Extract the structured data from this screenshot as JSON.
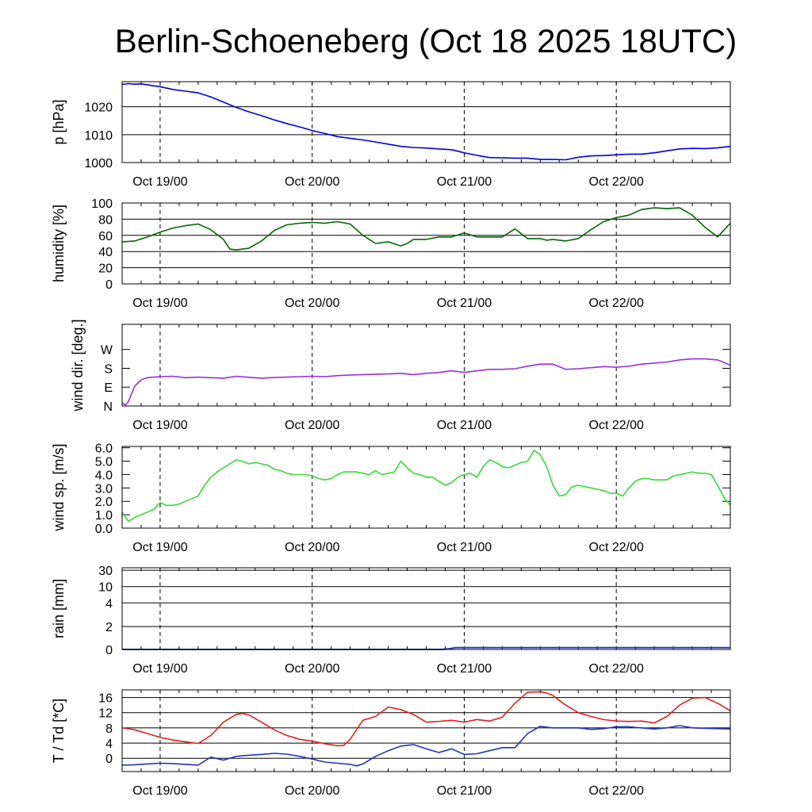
{
  "title": "Berlin-Schoeneberg (Oct 18 2025 18UTC)",
  "colors": {
    "pressure": "#0000e0",
    "humidity": "#006400",
    "wind_dir": "#9a30d8",
    "wind_speed": "#33dd33",
    "rain": "#1f3fbf",
    "temperature": "#e0201c",
    "dewpoint": "#2233bb"
  },
  "chart_data": [
    {
      "type": "line",
      "id": "pressure",
      "ylabel": "p [hPa]",
      "ylim": [
        1000,
        1029
      ],
      "yticks": [
        {
          "v": 1000,
          "label": "1000"
        },
        {
          "v": 1010,
          "label": "1010"
        },
        {
          "v": 1020,
          "label": "1020"
        }
      ],
      "xlim": [
        0,
        96
      ],
      "xticks": [
        {
          "v": 6,
          "label": "Oct 19/00"
        },
        {
          "v": 30,
          "label": "Oct 20/00"
        },
        {
          "v": 54,
          "label": "Oct 21/00"
        },
        {
          "v": 78,
          "label": "Oct 22/00"
        }
      ],
      "series": [
        {
          "name": "pressure",
          "color_key": "pressure",
          "x": [
            0,
            1,
            2,
            3,
            4,
            5,
            6,
            8,
            10,
            12,
            14,
            16,
            18,
            20,
            22,
            24,
            26,
            28,
            30,
            32,
            34,
            36,
            38,
            40,
            42,
            44,
            46,
            48,
            50,
            52,
            54,
            56,
            58,
            60,
            62,
            64,
            66,
            68,
            70,
            72,
            74,
            76,
            78,
            80,
            82,
            84,
            86,
            88,
            90,
            92,
            94,
            96
          ],
          "y": [
            1028.0,
            1028.3,
            1028.1,
            1028.2,
            1027.9,
            1027.5,
            1027.2,
            1026.2,
            1025.6,
            1025.0,
            1023.5,
            1021.7,
            1019.8,
            1018.2,
            1016.8,
            1015.3,
            1014.0,
            1012.8,
            1011.5,
            1010.4,
            1009.3,
            1008.7,
            1008.1,
            1007.4,
            1006.6,
            1005.8,
            1005.4,
            1005.2,
            1004.9,
            1004.6,
            1003.5,
            1002.6,
            1001.8,
            1001.7,
            1001.6,
            1001.6,
            1001.1,
            1001.1,
            1001.0,
            1001.9,
            1002.4,
            1002.5,
            1002.8,
            1003.0,
            1003.0,
            1003.5,
            1004.2,
            1004.9,
            1005.1,
            1005.0,
            1005.3,
            1005.8
          ]
        }
      ]
    },
    {
      "type": "line",
      "id": "humidity",
      "ylabel": "humidity [%]",
      "ylim": [
        0,
        100
      ],
      "yticks": [
        {
          "v": 0,
          "label": "0"
        },
        {
          "v": 20,
          "label": "20"
        },
        {
          "v": 40,
          "label": "40"
        },
        {
          "v": 60,
          "label": "60"
        },
        {
          "v": 80,
          "label": "80"
        },
        {
          "v": 100,
          "label": "100"
        }
      ],
      "xlim": [
        0,
        96
      ],
      "xticks": [
        {
          "v": 6,
          "label": "Oct 19/00"
        },
        {
          "v": 30,
          "label": "Oct 20/00"
        },
        {
          "v": 54,
          "label": "Oct 21/00"
        },
        {
          "v": 78,
          "label": "Oct 22/00"
        }
      ],
      "series": [
        {
          "name": "humidity",
          "color_key": "humidity",
          "x": [
            0,
            2,
            4,
            6,
            8,
            10,
            12,
            14,
            16,
            17,
            18,
            20,
            22,
            24,
            26,
            28,
            30,
            32,
            34,
            36,
            38,
            40,
            42,
            44,
            45,
            46,
            48,
            50,
            52,
            54,
            56,
            58,
            60,
            62,
            64,
            66,
            67,
            68,
            70,
            72,
            74,
            76,
            78,
            80,
            82,
            84,
            86,
            88,
            90,
            92,
            94,
            96
          ],
          "y": [
            52,
            53,
            58,
            64,
            69,
            72,
            74,
            67,
            55,
            43,
            42,
            44,
            53,
            66,
            73,
            75,
            76,
            75,
            77,
            74,
            60,
            50,
            52,
            47,
            50,
            55,
            55,
            58,
            58,
            63,
            58,
            58,
            58,
            68,
            56,
            56,
            54,
            55,
            53,
            56,
            67,
            77,
            82,
            85,
            92,
            94,
            93,
            94,
            85,
            70,
            58,
            75
          ]
        }
      ]
    },
    {
      "type": "line",
      "id": "wind_dir",
      "ylabel": "wind dir. [deg.]",
      "ylim": [
        0,
        390
      ],
      "yticks": [
        {
          "v": 0,
          "label": "N"
        },
        {
          "v": 90,
          "label": "E"
        },
        {
          "v": 180,
          "label": "S"
        },
        {
          "v": 270,
          "label": "W"
        }
      ],
      "xlim": [
        0,
        96
      ],
      "xticks": [
        {
          "v": 6,
          "label": "Oct 19/00"
        },
        {
          "v": 30,
          "label": "Oct 20/00"
        },
        {
          "v": 54,
          "label": "Oct 21/00"
        },
        {
          "v": 78,
          "label": "Oct 22/00"
        }
      ],
      "series": [
        {
          "name": "wind direction",
          "color_key": "wind_dir",
          "x": [
            0,
            0.5,
            1,
            1.5,
            2,
            3,
            4,
            5,
            6,
            8,
            10,
            12,
            14,
            16,
            18,
            20,
            22,
            24,
            26,
            28,
            30,
            32,
            34,
            36,
            38,
            40,
            42,
            44,
            46,
            48,
            50,
            52,
            54,
            56,
            58,
            60,
            62,
            64,
            66,
            68,
            70,
            72,
            74,
            76,
            78,
            80,
            82,
            84,
            86,
            88,
            90,
            92,
            94,
            96
          ],
          "y": [
            15,
            5,
            20,
            60,
            95,
            125,
            135,
            138,
            140,
            142,
            135,
            138,
            135,
            133,
            142,
            137,
            133,
            136,
            138,
            140,
            142,
            140,
            145,
            148,
            150,
            152,
            153,
            156,
            150,
            156,
            160,
            168,
            160,
            168,
            175,
            175,
            178,
            190,
            200,
            200,
            175,
            178,
            183,
            188,
            185,
            190,
            200,
            205,
            210,
            220,
            225,
            225,
            220,
            195
          ]
        }
      ]
    },
    {
      "type": "line",
      "id": "wind_speed",
      "ylabel": "wind sp. [m/s]",
      "ylim": [
        0,
        6.1
      ],
      "yticks": [
        {
          "v": 0,
          "label": "0.0"
        },
        {
          "v": 1,
          "label": "1.0"
        },
        {
          "v": 2,
          "label": "2.0"
        },
        {
          "v": 3,
          "label": "3.0"
        },
        {
          "v": 4,
          "label": "4.0"
        },
        {
          "v": 5,
          "label": "5.0"
        },
        {
          "v": 6,
          "label": "6.0"
        }
      ],
      "xlim": [
        0,
        96
      ],
      "xticks": [
        {
          "v": 6,
          "label": "Oct 19/00"
        },
        {
          "v": 30,
          "label": "Oct 20/00"
        },
        {
          "v": 54,
          "label": "Oct 21/00"
        },
        {
          "v": 78,
          "label": "Oct 22/00"
        }
      ],
      "series": [
        {
          "name": "wind speed",
          "color_key": "wind_speed",
          "x": [
            0,
            1,
            2,
            3,
            4,
            5,
            6,
            7,
            8,
            9,
            10,
            11,
            12,
            13,
            14,
            15,
            16,
            17,
            18,
            19,
            20,
            21,
            22,
            23,
            24,
            25,
            26,
            27,
            28,
            29,
            30,
            31,
            32,
            33,
            34,
            35,
            36,
            37,
            38,
            39,
            40,
            41,
            42,
            43,
            44,
            45,
            46,
            47,
            48,
            49,
            50,
            51,
            52,
            53,
            54,
            55,
            56,
            57,
            58,
            59,
            60,
            61,
            62,
            63,
            64,
            65,
            66,
            67,
            68,
            69,
            70,
            71,
            72,
            73,
            74,
            75,
            76,
            77,
            78,
            79,
            80,
            81,
            82,
            83,
            84,
            85,
            86,
            87,
            88,
            89,
            90,
            91,
            92,
            93,
            94,
            95,
            96
          ],
          "y": [
            1.2,
            0.5,
            0.8,
            1.0,
            1.2,
            1.4,
            1.9,
            1.7,
            1.7,
            1.8,
            2.0,
            2.2,
            2.4,
            3.2,
            3.8,
            4.2,
            4.5,
            4.8,
            5.1,
            5.0,
            4.8,
            4.9,
            4.8,
            4.7,
            4.4,
            4.3,
            4.1,
            4.0,
            4.0,
            4.0,
            3.9,
            3.7,
            3.6,
            3.7,
            4.0,
            4.2,
            4.2,
            4.2,
            4.1,
            4.0,
            4.3,
            4.0,
            4.1,
            4.2,
            5.0,
            4.5,
            4.1,
            4.0,
            3.8,
            3.8,
            3.5,
            3.2,
            3.4,
            3.8,
            4.0,
            4.1,
            3.8,
            4.6,
            5.1,
            4.9,
            4.6,
            4.5,
            4.7,
            4.9,
            5.0,
            5.8,
            5.5,
            4.6,
            3.2,
            2.4,
            2.5,
            3.1,
            3.2,
            3.1,
            3.0,
            2.9,
            2.8,
            2.6,
            2.6,
            2.4,
            3.0,
            3.5,
            3.7,
            3.7,
            3.6,
            3.6,
            3.6,
            3.9,
            4.0,
            4.1,
            4.2,
            4.1,
            4.1,
            4.0,
            3.2,
            2.3,
            1.7
          ]
        }
      ]
    },
    {
      "type": "area",
      "id": "rain",
      "ylabel": "rain [mm]",
      "ylim": [
        0,
        30
      ],
      "yticks": [
        {
          "v": 0,
          "label": "0"
        },
        {
          "v": 2,
          "label": "2"
        },
        {
          "v": 4,
          "label": "4"
        },
        {
          "v": 10,
          "label": "10"
        },
        {
          "v": 30,
          "label": "30"
        }
      ],
      "xlim": [
        0,
        96
      ],
      "xticks": [
        {
          "v": 6,
          "label": "Oct 19/00"
        },
        {
          "v": 30,
          "label": "Oct 20/00"
        },
        {
          "v": 54,
          "label": "Oct 21/00"
        },
        {
          "v": 78,
          "label": "Oct 22/00"
        }
      ],
      "series": [
        {
          "name": "rain",
          "color_key": "rain",
          "x": [
            0,
            50.5,
            51.5,
            52.5,
            96
          ],
          "y": [
            0,
            0,
            0.05,
            0.15,
            0.15
          ]
        }
      ]
    },
    {
      "type": "line",
      "id": "temperature",
      "ylabel": "T / Td [*C]",
      "ylim": [
        -3.5,
        18
      ],
      "yticks": [
        {
          "v": 0,
          "label": "0"
        },
        {
          "v": 4,
          "label": "4"
        },
        {
          "v": 8,
          "label": "8"
        },
        {
          "v": 12,
          "label": "12"
        },
        {
          "v": 16,
          "label": "16"
        }
      ],
      "xlim": [
        0,
        96
      ],
      "xticks": [
        {
          "v": 6,
          "label": "Oct 19/00"
        },
        {
          "v": 30,
          "label": "Oct 20/00"
        },
        {
          "v": 54,
          "label": "Oct 21/00"
        },
        {
          "v": 78,
          "label": "Oct 22/00"
        }
      ],
      "series": [
        {
          "name": "T",
          "color_key": "temperature",
          "x": [
            0,
            2,
            4,
            6,
            8,
            10,
            12,
            14,
            16,
            18,
            19,
            20,
            22,
            24,
            26,
            28,
            30,
            32,
            34,
            35,
            36,
            38,
            40,
            42,
            44,
            46,
            48,
            50,
            52,
            54,
            56,
            58,
            60,
            62,
            64,
            66,
            67,
            68,
            70,
            72,
            74,
            76,
            78,
            80,
            82,
            84,
            86,
            88,
            90,
            92,
            94,
            96
          ],
          "y": [
            8.0,
            7.5,
            6.5,
            5.5,
            4.8,
            4.3,
            3.9,
            6.0,
            9.5,
            11.5,
            11.8,
            11.4,
            9.5,
            7.5,
            6.0,
            5.0,
            4.5,
            3.8,
            3.3,
            3.4,
            5.0,
            10.0,
            11.0,
            13.5,
            12.8,
            11.5,
            9.5,
            9.7,
            10.0,
            9.5,
            10.2,
            9.8,
            10.8,
            14.5,
            17.4,
            17.5,
            17.2,
            16.5,
            14.0,
            12.0,
            11.0,
            10.2,
            9.8,
            9.7,
            9.8,
            9.3,
            11.0,
            14.0,
            15.8,
            16.0,
            14.5,
            12.5
          ]
        },
        {
          "name": "Td",
          "color_key": "dewpoint",
          "x": [
            0,
            2,
            4,
            6,
            8,
            10,
            12,
            14,
            16,
            18,
            20,
            22,
            24,
            26,
            28,
            30,
            32,
            34,
            36,
            37,
            38,
            40,
            42,
            44,
            46,
            48,
            50,
            52,
            54,
            56,
            58,
            60,
            62,
            64,
            66,
            68,
            70,
            72,
            74,
            76,
            78,
            80,
            82,
            84,
            86,
            88,
            90,
            92,
            94,
            96
          ],
          "y": [
            -1.8,
            -1.7,
            -1.5,
            -1.3,
            -1.4,
            -1.6,
            -1.8,
            0.3,
            -0.5,
            0.5,
            0.8,
            1.0,
            1.3,
            1.1,
            0.5,
            -0.2,
            -1.0,
            -1.3,
            -1.6,
            -2.0,
            -1.5,
            0.5,
            2.0,
            3.2,
            3.6,
            2.5,
            1.5,
            2.5,
            1.0,
            1.2,
            2.0,
            2.8,
            2.8,
            6.5,
            8.4,
            8.0,
            8.0,
            8.0,
            7.6,
            7.8,
            8.3,
            8.3,
            8.0,
            7.7,
            8.0,
            8.6,
            8.0,
            7.9,
            7.8,
            7.7
          ]
        }
      ]
    }
  ]
}
